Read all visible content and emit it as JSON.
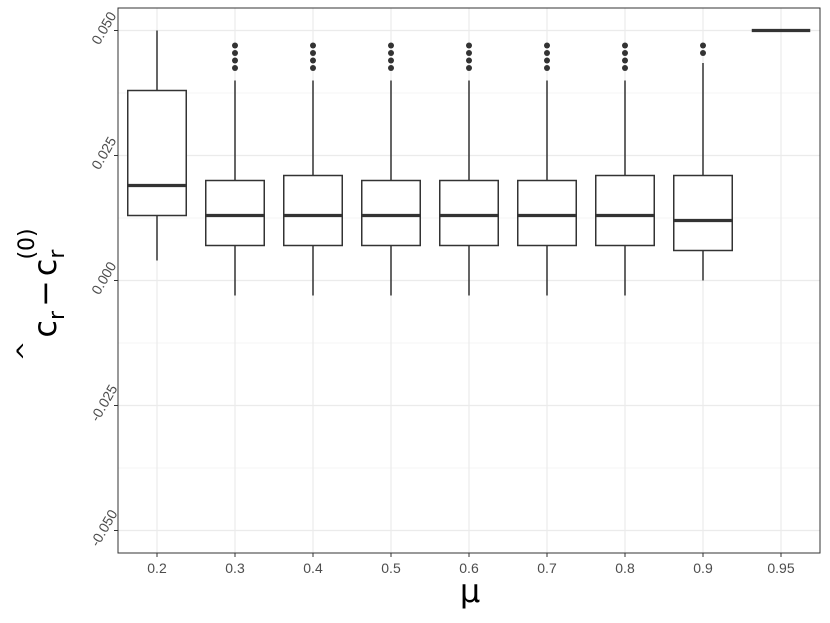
{
  "chart_data": {
    "type": "boxplot",
    "title": "",
    "xlabel": "μ",
    "ylabel": {
      "hat": "^",
      "base": "c",
      "sub": "r",
      "minus": "−",
      "sup": "(0)"
    },
    "ylim": [
      -0.0545,
      0.0545
    ],
    "grid": true,
    "y_ticks": [
      {
        "value": -0.05,
        "label": "-0.050"
      },
      {
        "value": -0.025,
        "label": "-0.025"
      },
      {
        "value": 0.0,
        "label": "0.000"
      },
      {
        "value": 0.025,
        "label": "0.025"
      },
      {
        "value": 0.05,
        "label": "0.050"
      }
    ],
    "categories": [
      "0.2",
      "0.3",
      "0.4",
      "0.5",
      "0.6",
      "0.7",
      "0.8",
      "0.9",
      "0.95"
    ],
    "boxes": [
      {
        "category": "0.2",
        "whisker_low": 0.004,
        "q1": 0.013,
        "median": 0.019,
        "q3": 0.038,
        "whisker_high": 0.05,
        "outliers": []
      },
      {
        "category": "0.3",
        "whisker_low": -0.003,
        "q1": 0.007,
        "median": 0.013,
        "q3": 0.02,
        "whisker_high": 0.04,
        "outliers": [
          0.0425,
          0.044,
          0.0455,
          0.047
        ]
      },
      {
        "category": "0.4",
        "whisker_low": -0.003,
        "q1": 0.007,
        "median": 0.013,
        "q3": 0.021,
        "whisker_high": 0.04,
        "outliers": [
          0.0425,
          0.044,
          0.0455,
          0.047
        ]
      },
      {
        "category": "0.5",
        "whisker_low": -0.003,
        "q1": 0.007,
        "median": 0.013,
        "q3": 0.02,
        "whisker_high": 0.04,
        "outliers": [
          0.0425,
          0.044,
          0.0455,
          0.047
        ]
      },
      {
        "category": "0.6",
        "whisker_low": -0.003,
        "q1": 0.007,
        "median": 0.013,
        "q3": 0.02,
        "whisker_high": 0.04,
        "outliers": [
          0.0425,
          0.044,
          0.0455,
          0.047
        ]
      },
      {
        "category": "0.7",
        "whisker_low": -0.003,
        "q1": 0.007,
        "median": 0.013,
        "q3": 0.02,
        "whisker_high": 0.04,
        "outliers": [
          0.0425,
          0.044,
          0.0455,
          0.047
        ]
      },
      {
        "category": "0.8",
        "whisker_low": -0.003,
        "q1": 0.007,
        "median": 0.013,
        "q3": 0.021,
        "whisker_high": 0.04,
        "outliers": [
          0.0425,
          0.044,
          0.0455,
          0.047
        ]
      },
      {
        "category": "0.9",
        "whisker_low": 0.0,
        "q1": 0.006,
        "median": 0.012,
        "q3": 0.021,
        "whisker_high": 0.0435,
        "outliers": [
          0.0455,
          0.047
        ]
      },
      {
        "category": "0.95",
        "whisker_low": 0.05,
        "q1": 0.05,
        "median": 0.05,
        "q3": 0.05,
        "whisker_high": 0.05,
        "outliers": []
      }
    ],
    "colors": {
      "box_line": "#333333",
      "box_fill": "#ffffff",
      "grid_major": "#ebebeb",
      "grid_minor": "#f4f4f4",
      "panel_border": "#333333",
      "tick_text": "#4d4d4d"
    }
  }
}
